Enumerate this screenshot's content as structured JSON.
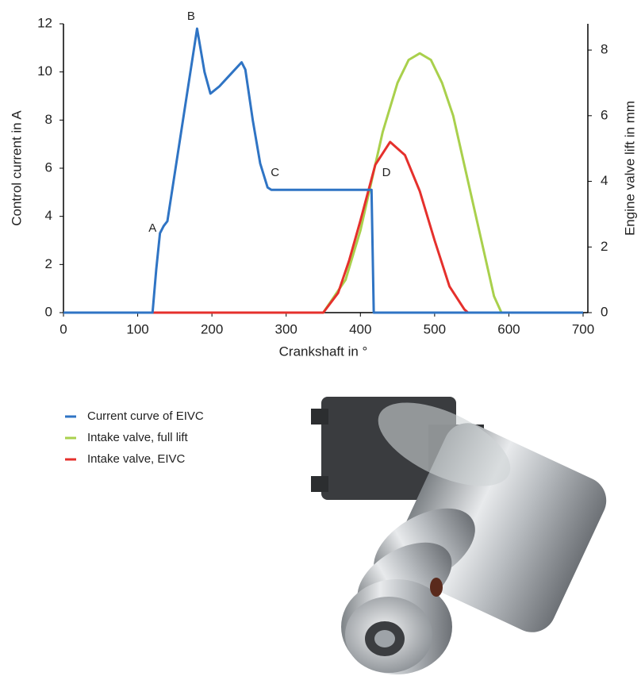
{
  "chart_data": {
    "type": "line",
    "x_label": "Crankshaft in °",
    "y_label": "Control current in A",
    "y2_label": "Engine valve lift in mm",
    "xlim": [
      0,
      700
    ],
    "xticks": [
      0,
      100,
      200,
      300,
      400,
      500,
      600,
      700
    ],
    "ylim": [
      0,
      12
    ],
    "yticks": [
      0,
      2,
      4,
      6,
      8,
      10,
      12
    ],
    "y2lim": [
      0,
      8.8
    ],
    "y2ticks": [
      0,
      2,
      4,
      6,
      8
    ],
    "annotations": [
      "A",
      "B",
      "C",
      "D"
    ],
    "series": [
      {
        "name": "Current curve of EIVC",
        "color": "#2f74c4",
        "axis": "y",
        "x": [
          0,
          120,
          125,
          130,
          135,
          140,
          180,
          190,
          198,
          210,
          225,
          240,
          245,
          255,
          265,
          275,
          280,
          415,
          418,
          700
        ],
        "values": [
          0,
          0,
          1.8,
          3.3,
          3.6,
          3.8,
          11.8,
          10,
          9.1,
          9.4,
          9.9,
          10.4,
          10.1,
          8,
          6.2,
          5.2,
          5.1,
          5.1,
          0,
          0
        ]
      },
      {
        "name": "Intake valve, full lift",
        "color": "#a9d04c",
        "axis": "y2",
        "x": [
          350,
          380,
          400,
          430,
          450,
          465,
          480,
          495,
          510,
          525,
          540,
          560,
          580,
          590
        ],
        "values": [
          0,
          1,
          2.5,
          5.5,
          7,
          7.7,
          7.9,
          7.7,
          7,
          6,
          4.5,
          2.5,
          0.5,
          0
        ]
      },
      {
        "name": "Intake valve, EIVC",
        "color": "#e5302c",
        "axis": "y2",
        "x": [
          120,
          350,
          370,
          385,
          400,
          420,
          440,
          460,
          480,
          500,
          520,
          540,
          545
        ],
        "values": [
          0,
          0,
          0.6,
          1.6,
          2.8,
          4.5,
          5.2,
          4.8,
          3.7,
          2.2,
          0.8,
          0.1,
          0
        ]
      }
    ]
  }
}
